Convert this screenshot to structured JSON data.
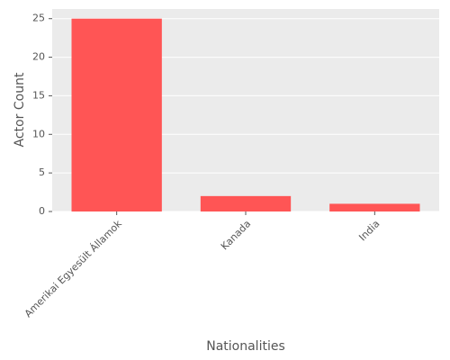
{
  "chart_data": {
    "type": "bar",
    "x_label": "Nationalities",
    "y_label": "Actor Count",
    "categories": [
      "Amerikai Egyesült Államok",
      "Kanada",
      "India"
    ],
    "values": [
      25,
      2,
      1
    ],
    "color": "#ff5555",
    "ylim": [
      0,
      26.25
    ],
    "yticks": [
      0,
      5,
      10,
      15,
      20,
      25
    ],
    "grid": true
  }
}
